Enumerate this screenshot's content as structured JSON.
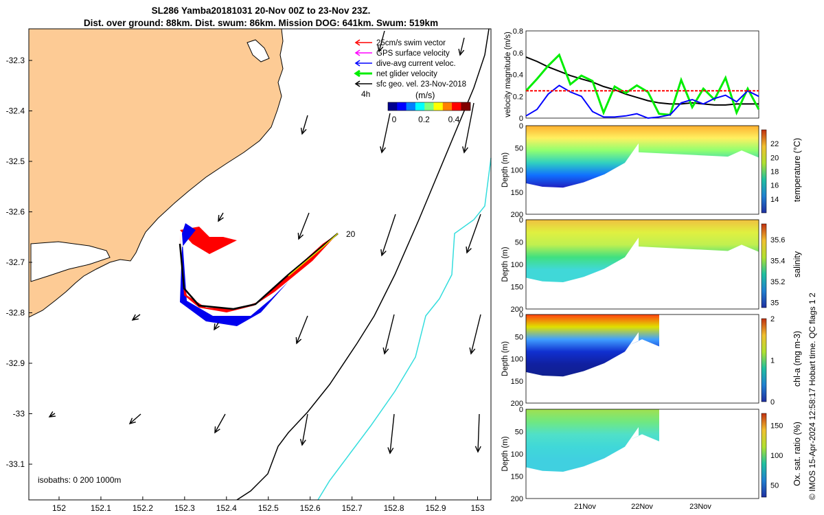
{
  "header": {
    "title_line1": "SL286 Yamba20181031 20-Nov 00Z to 23-Nov 23Z.",
    "title_line2": "Dist. over ground: 88km. Dist. swum: 86km. Mission DOG: 641km. Swum: 519km"
  },
  "map": {
    "lon_ticks": [
      "152",
      "152.1",
      "152.2",
      "152.3",
      "152.4",
      "152.5",
      "152.6",
      "152.7",
      "152.8",
      "152.9",
      "153"
    ],
    "lat_ticks": [
      "-32.3",
      "-32.4",
      "-32.5",
      "-32.6",
      "-32.7",
      "-32.8",
      "-32.9",
      "-33",
      "-33.1"
    ],
    "legend": [
      {
        "label": "25cm/s swim vector",
        "color": "#ff0000"
      },
      {
        "label": "GPS surface velocity",
        "color": "#ff00ff"
      },
      {
        "label": "dive-avg current veloc.",
        "color": "#0000ff"
      },
      {
        "label": "net glider velocity",
        "color": "#00ee00"
      },
      {
        "label": "sfc geo. vel. 23-Nov-2018",
        "color": "#000000"
      }
    ],
    "time_step_label": "4h",
    "colorbar_label": "(m/s)",
    "colorbar_ticks": [
      "0",
      "0.2",
      "0.4"
    ],
    "isobaths_label": "isobaths: 0   200  1000m",
    "track_end_label": "20",
    "land_color": "#fdcb95",
    "shelf_isobath_color": "#000000",
    "deep_isobath_color": "#33dddd"
  },
  "chart_data": [
    {
      "type": "line",
      "title": "",
      "ylabel": "velocity magnitude (m/s)",
      "ylim": [
        0,
        0.8
      ],
      "yticks": [
        "0",
        "0.2",
        "0.4",
        "0.6",
        "0.8"
      ],
      "x_date_range": [
        "20-Nov-2018 00:00",
        "24-Nov-2018 00:00"
      ],
      "series": [
        {
          "color": "#000000",
          "values": [
            0.56,
            0.52,
            0.47,
            0.43,
            0.39,
            0.36,
            0.33,
            0.29,
            0.26,
            0.22,
            0.19,
            0.16,
            0.14,
            0.13,
            0.13,
            0.14,
            0.13,
            0.12,
            0.12,
            0.13,
            0.13,
            0.13
          ]
        },
        {
          "color": "#00ee00",
          "values": [
            0.25,
            0.36,
            0.48,
            0.58,
            0.31,
            0.39,
            0.34,
            0.05,
            0.29,
            0.23,
            0.3,
            0.24,
            0.04,
            0.03,
            0.35,
            0.1,
            0.27,
            0.17,
            0.37,
            0.05,
            0.27,
            0.08
          ]
        },
        {
          "color": "#0000ff",
          "values": [
            0.02,
            0.08,
            0.22,
            0.3,
            0.24,
            0.2,
            0.06,
            0.01,
            0.01,
            0.02,
            0.04,
            0.0,
            0.01,
            0.03,
            0.14,
            0.17,
            0.13,
            0.18,
            0.21,
            0.15,
            0.25,
            0.2
          ]
        },
        {
          "color": "#ff0000",
          "values": [
            0.25,
            0.25,
            0.25,
            0.25,
            0.25,
            0.25,
            0.25,
            0.25,
            0.25,
            0.25,
            0.25,
            0.25,
            0.25,
            0.25,
            0.25,
            0.25,
            0.25,
            0.25,
            0.25,
            0.25,
            0.25,
            0.25
          ]
        }
      ]
    },
    {
      "type": "heatmap",
      "variable": "temperature",
      "colorbar_label": "temperature (°C)",
      "colorbar_ticks": [
        "14",
        "16",
        "18",
        "20",
        "22"
      ],
      "ylabel": "Depth (m)",
      "yticks": [
        "0",
        "50",
        "100",
        "150",
        "200"
      ],
      "ylim": [
        200,
        0
      ],
      "xticks": []
    },
    {
      "type": "heatmap",
      "variable": "salinity",
      "colorbar_label": "salinity",
      "colorbar_ticks": [
        "35",
        "35.2",
        "35.4",
        "35.6"
      ],
      "ylabel": "Depth (m)",
      "yticks": [
        "0",
        "50",
        "100",
        "150",
        "200"
      ],
      "ylim": [
        200,
        0
      ],
      "xticks": []
    },
    {
      "type": "heatmap",
      "variable": "chl-a",
      "colorbar_label": "chl-a (mg m-3)",
      "colorbar_ticks": [
        "0",
        "1",
        "2"
      ],
      "ylabel": "Depth (m)",
      "yticks": [
        "0",
        "50",
        "100",
        "150",
        "200"
      ],
      "ylim": [
        200,
        0
      ],
      "xticks": []
    },
    {
      "type": "heatmap",
      "variable": "oxygen saturation",
      "colorbar_label": "Ox. sat. ratio (%)",
      "colorbar_ticks": [
        "50",
        "100",
        "150"
      ],
      "ylabel": "Depth (m)",
      "yticks": [
        "0",
        "50",
        "100",
        "150",
        "200"
      ],
      "ylim": [
        200,
        0
      ],
      "xticks": [
        "21Nov",
        "22Nov",
        "23Nov"
      ]
    }
  ],
  "footer": {
    "credit": "© IMOS 15-Apr-2024 12:58:17 Hobart time. QC flags 1  2"
  }
}
